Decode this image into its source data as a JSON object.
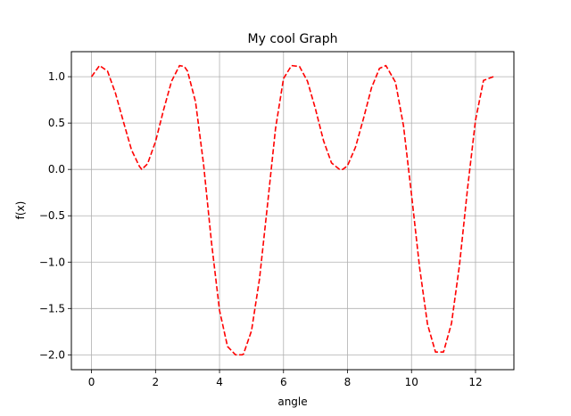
{
  "chart_data": {
    "type": "line",
    "title": "My cool Graph",
    "xlabel": "angle",
    "ylabel": "f(x)",
    "xlim": [
      -0.63,
      13.2
    ],
    "ylim": [
      -2.16,
      1.27
    ],
    "grid": true,
    "xticks": [
      "0",
      "2",
      "4",
      "6",
      "8",
      "10",
      "12"
    ],
    "yticks": [
      "1.0",
      "0.5",
      "0.0",
      "−0.5",
      "−1.0",
      "−1.5",
      "−2.0"
    ],
    "series": [
      {
        "color": "#ff0000",
        "style": "dashed",
        "x": [
          0.0,
          0.25,
          0.5,
          0.75,
          1.0,
          1.25,
          1.5,
          1.57,
          1.75,
          2.0,
          2.25,
          2.5,
          2.75,
          2.9,
          3.0,
          3.25,
          3.5,
          3.75,
          4.0,
          4.25,
          4.5,
          4.71,
          4.75,
          5.0,
          5.25,
          5.5,
          5.75,
          6.0,
          6.25,
          6.5,
          6.75,
          7.0,
          7.25,
          7.5,
          7.75,
          7.85,
          8.0,
          8.25,
          8.5,
          8.75,
          9.0,
          9.2,
          9.5,
          9.75,
          10.0,
          10.25,
          10.5,
          10.75,
          11.0,
          11.25,
          11.5,
          11.75,
          12.0,
          12.25,
          12.56
        ],
        "y": [
          1.0,
          1.12,
          1.06,
          0.82,
          0.51,
          0.21,
          0.03,
          0.0,
          0.06,
          0.3,
          0.64,
          0.95,
          1.12,
          1.11,
          1.06,
          0.73,
          0.06,
          -0.79,
          -1.52,
          -1.91,
          -2.0,
          -2.0,
          -1.99,
          -1.74,
          -1.18,
          -0.38,
          0.44,
          0.98,
          1.12,
          1.11,
          0.95,
          0.65,
          0.31,
          0.07,
          0.0,
          0.0,
          0.04,
          0.24,
          0.55,
          0.88,
          1.09,
          1.12,
          0.94,
          0.47,
          -0.27,
          -1.05,
          -1.67,
          -1.97,
          -1.97,
          -1.66,
          -1.03,
          -0.21,
          0.53,
          0.96,
          1.0
        ]
      }
    ]
  }
}
